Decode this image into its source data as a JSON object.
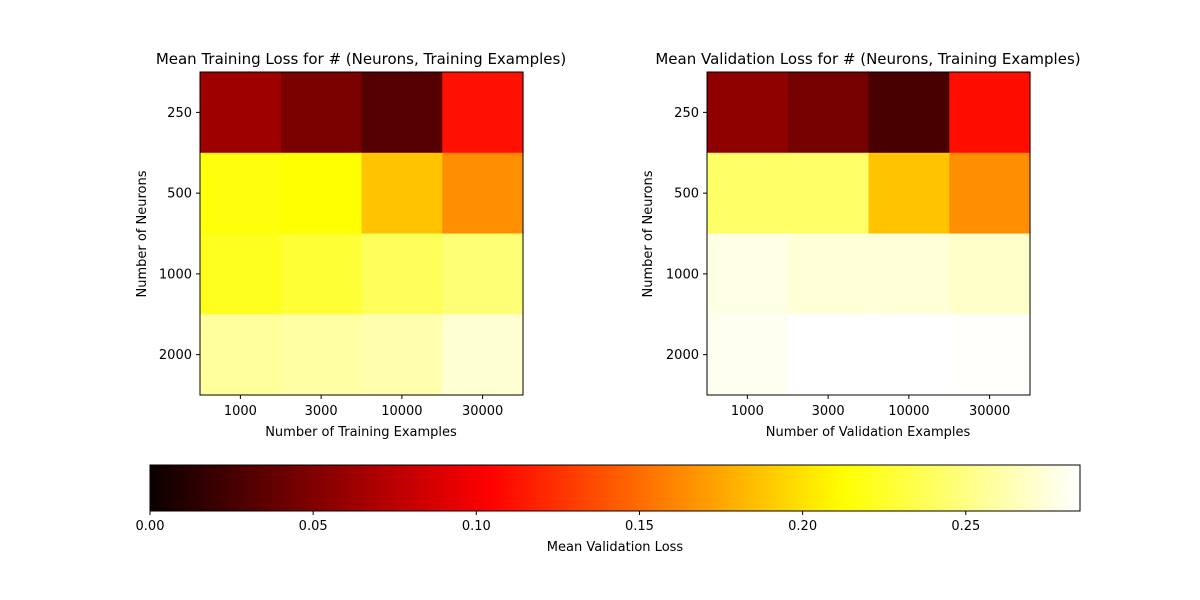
{
  "chart_data": [
    {
      "type": "heatmap",
      "title": "Mean Training Loss for # (Neurons, Training Examples)",
      "xlabel": "Number of Training Examples",
      "ylabel": "Number of Neurons",
      "x_categories": [
        "1000",
        "3000",
        "10000",
        "30000"
      ],
      "y_categories": [
        "250",
        "500",
        "1000",
        "2000"
      ],
      "values": [
        [
          0.06,
          0.046,
          0.03,
          0.111
        ],
        [
          0.216,
          0.213,
          0.187,
          0.165
        ],
        [
          0.221,
          0.228,
          0.238,
          0.246
        ],
        [
          0.257,
          0.259,
          0.262,
          0.272
        ]
      ]
    },
    {
      "type": "heatmap",
      "title": "Mean Validation Loss for # (Neurons, Training Examples)",
      "xlabel": "Number of Validation Examples",
      "ylabel": "Number of Neurons",
      "x_categories": [
        "1000",
        "3000",
        "10000",
        "30000"
      ],
      "y_categories": [
        "250",
        "500",
        "1000",
        "2000"
      ],
      "values": [
        [
          0.054,
          0.043,
          0.025,
          0.11
        ],
        [
          0.242,
          0.242,
          0.187,
          0.165
        ],
        [
          0.278,
          0.274,
          0.274,
          0.27
        ],
        [
          0.281,
          0.285,
          0.285,
          0.284
        ]
      ]
    }
  ],
  "colorbar": {
    "label": "Mean Validation Loss",
    "colormap": "hot",
    "range": [
      0,
      0.285
    ],
    "ticks": [
      "0.00",
      "0.05",
      "0.10",
      "0.15",
      "0.20",
      "0.25"
    ],
    "tick_values": [
      0,
      0.05,
      0.1,
      0.15,
      0.2,
      0.25
    ]
  }
}
